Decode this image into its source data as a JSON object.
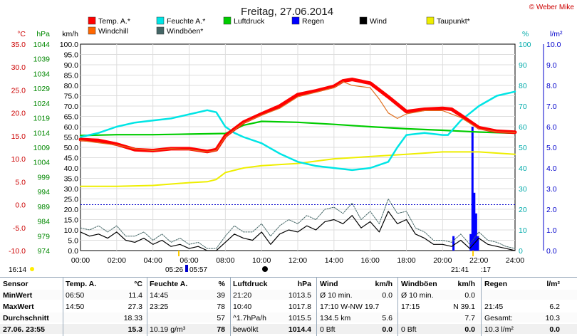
{
  "title": "Freitag, 27.06.2014",
  "copyright": "© Weber Mike",
  "chart_data": {
    "type": "line",
    "x_ticks": [
      "00:00",
      "02:00",
      "04:00",
      "06:00",
      "08:00",
      "10:00",
      "12:00",
      "14:00",
      "16:00",
      "18:00",
      "20:00",
      "22:00",
      "24:00"
    ],
    "axes": {
      "temp_c": {
        "label": "°C",
        "color": "#cc0000",
        "ticks": [
          "35.0",
          "30.0",
          "25.0",
          "20.0",
          "15.0",
          "10.0",
          "5.0",
          "0.0",
          "-5.0",
          "-10.0"
        ],
        "range": [
          -10,
          35
        ]
      },
      "pressure_hpa": {
        "label": "hPa",
        "color": "#008800",
        "ticks": [
          "1044",
          "1039",
          "1034",
          "1029",
          "1024",
          "1019",
          "1014",
          "1009",
          "1004",
          "999",
          "994",
          "989",
          "984",
          "979",
          "974"
        ],
        "range": [
          974,
          1044
        ]
      },
      "wind_kmh": {
        "label": "km/h",
        "color": "#000000",
        "ticks": [
          "100.0",
          "95.0",
          "90.0",
          "85.0",
          "80.0",
          "75.0",
          "70.0",
          "65.0",
          "60.0",
          "55.0",
          "50.0",
          "45.0",
          "40.0",
          "35.0",
          "30.0",
          "25.0",
          "20.0",
          "15.0",
          "10.0",
          "5.0",
          "0.0"
        ],
        "range": [
          0,
          100
        ]
      },
      "humidity_pct": {
        "label": "%",
        "color": "#00aaaa",
        "ticks": [
          "100",
          "90",
          "80",
          "70",
          "60",
          "50",
          "40",
          "30",
          "20",
          "10",
          "0"
        ],
        "range": [
          0,
          100
        ]
      },
      "rain_lm2": {
        "label": "l/m²",
        "color": "#0000cc",
        "ticks": [
          "10.0",
          "9.0",
          "8.0",
          "7.0",
          "6.0",
          "5.0",
          "4.0",
          "3.0",
          "2.0",
          "1.0",
          "0.0"
        ],
        "range": [
          0,
          10
        ]
      }
    },
    "legend": [
      {
        "name": "Temp. A.*",
        "color": "#ff0000"
      },
      {
        "name": "Feuchte A.*",
        "color": "#00e5e5"
      },
      {
        "name": "Luftdruck",
        "color": "#00cc00"
      },
      {
        "name": "Regen",
        "color": "#0000ff"
      },
      {
        "name": "Wind",
        "color": "#000000"
      },
      {
        "name": "Taupunkt*",
        "color": "#eeee00"
      },
      {
        "name": "Windchill",
        "color": "#ff6600"
      },
      {
        "name": "Windböen*",
        "color": "#446666"
      }
    ],
    "series": [
      {
        "name": "Temp. A.*",
        "axis": "temp_c",
        "color": "#ff0000",
        "x": [
          0,
          1,
          2,
          3,
          4,
          5,
          6,
          7,
          7.5,
          8,
          9,
          10,
          11,
          12,
          13,
          14,
          14.5,
          15,
          16,
          17,
          18,
          19,
          20,
          20.5,
          21,
          22,
          23,
          24
        ],
        "y": [
          14.2,
          14.0,
          13.2,
          12.0,
          11.8,
          12.2,
          12.2,
          11.6,
          12.0,
          15.0,
          18.0,
          19.8,
          21.5,
          24.0,
          24.8,
          25.8,
          27.0,
          27.3,
          26.5,
          23.5,
          20.3,
          20.8,
          21.0,
          20.8,
          19.5,
          16.8,
          16.0,
          15.8
        ]
      },
      {
        "name": "Windchill",
        "axis": "temp_c",
        "color": "#e07020",
        "x": [
          0,
          1,
          2,
          3,
          4,
          5,
          6,
          7,
          7.5,
          8,
          9,
          10,
          11,
          12,
          13,
          14,
          14.5,
          15,
          16,
          16.5,
          17,
          17.5,
          18,
          19,
          20,
          21,
          22,
          23,
          24
        ],
        "y": [
          14.0,
          13.5,
          13.0,
          12.2,
          11.8,
          12.2,
          12.0,
          11.5,
          11.8,
          14.8,
          17.8,
          19.5,
          21.0,
          23.5,
          24.5,
          25.5,
          26.8,
          26.0,
          25.5,
          23.0,
          20.0,
          18.8,
          19.8,
          20.5,
          20.5,
          19.0,
          16.5,
          15.9,
          15.7
        ]
      },
      {
        "name": "Feuchte A.*",
        "axis": "humidity_pct",
        "color": "#00e5e5",
        "x": [
          0,
          1,
          2,
          3,
          4,
          5,
          6,
          7,
          7.5,
          8,
          8.5,
          9,
          10,
          11,
          12,
          13,
          14,
          15,
          16,
          17,
          17.5,
          18,
          19,
          20,
          20.3,
          21,
          22,
          23,
          24
        ],
        "y": [
          55,
          57,
          60,
          62,
          63,
          64,
          66,
          68,
          67,
          60,
          57,
          55,
          52,
          47,
          43,
          41,
          40,
          39,
          40,
          43,
          50,
          56,
          57,
          56,
          56,
          63,
          70,
          75,
          77
        ]
      },
      {
        "name": "Luftdruck",
        "axis": "pressure_hpa",
        "color": "#00cc00",
        "x": [
          0,
          2,
          4,
          6,
          8,
          8.5,
          9,
          10,
          12,
          14,
          16,
          18,
          20,
          22,
          24
        ],
        "y": [
          1013.0,
          1013.3,
          1013.3,
          1013.5,
          1013.7,
          1015.0,
          1016.5,
          1017.8,
          1017.5,
          1016.8,
          1016.0,
          1015.3,
          1014.8,
          1014.2,
          1013.8
        ]
      },
      {
        "name": "Taupunkt*",
        "axis": "temp_c",
        "color": "#eeee00",
        "x": [
          0,
          2,
          4,
          6,
          7,
          7.5,
          8,
          9,
          10,
          12,
          14,
          16,
          18,
          20,
          22,
          24
        ],
        "y": [
          4.0,
          4.0,
          4.2,
          4.8,
          5.0,
          5.5,
          7.0,
          8.0,
          8.5,
          9.0,
          10.0,
          10.5,
          11.0,
          11.5,
          11.5,
          11.0
        ]
      },
      {
        "name": "Wind",
        "axis": "wind_kmh",
        "color": "#000000",
        "x": [
          0,
          0.5,
          1,
          1.5,
          2,
          2.5,
          3,
          3.5,
          4,
          4.5,
          5,
          5.5,
          6,
          6.5,
          7,
          7.5,
          8,
          8.5,
          9,
          9.5,
          10,
          10.5,
          11,
          11.5,
          12,
          12.5,
          13,
          13.5,
          14,
          14.5,
          15,
          15.5,
          16,
          16.5,
          17,
          17.5,
          18,
          18.5,
          19,
          19.5,
          20,
          20.5,
          21,
          21.5,
          22,
          22.5,
          23,
          23.5,
          24
        ],
        "y": [
          9,
          7,
          8,
          6,
          9,
          5,
          4,
          6,
          3,
          5,
          2,
          3,
          1,
          2,
          0,
          0,
          4,
          8,
          6,
          5,
          9,
          3,
          8,
          10,
          9,
          12,
          10,
          14,
          15,
          13,
          17,
          11,
          14,
          9,
          19,
          13,
          15,
          8,
          6,
          3,
          3,
          2,
          5,
          1,
          6,
          3,
          2,
          1,
          0
        ]
      },
      {
        "name": "Windböen*",
        "axis": "wind_kmh",
        "color": "#446666",
        "x": [
          0,
          0.5,
          1,
          1.5,
          2,
          2.5,
          3,
          3.5,
          4,
          4.5,
          5,
          5.5,
          6,
          6.5,
          7,
          7.5,
          8,
          8.5,
          9,
          9.5,
          10,
          10.5,
          11,
          11.5,
          12,
          12.5,
          13,
          13.5,
          14,
          14.5,
          15,
          15.5,
          16,
          16.5,
          17,
          17.5,
          18,
          18.5,
          19,
          19.5,
          20,
          20.5,
          21,
          21.5,
          22,
          22.5,
          23,
          23.5,
          24
        ],
        "y": [
          11,
          10,
          12,
          9,
          12,
          7,
          7,
          9,
          5,
          8,
          4,
          6,
          3,
          4,
          1,
          1,
          7,
          12,
          9,
          9,
          13,
          7,
          12,
          15,
          13,
          17,
          15,
          20,
          21,
          18,
          23,
          15,
          19,
          13,
          25,
          18,
          19,
          11,
          9,
          5,
          5,
          4,
          8,
          3,
          9,
          5,
          4,
          2,
          1
        ]
      }
    ],
    "rain_bars": {
      "axis": "rain_lm2",
      "color": "#0000ff",
      "x": [
        20.6,
        21.55,
        21.65,
        21.75,
        21.85,
        21.95
      ],
      "y": [
        0.7,
        0.8,
        6.0,
        2.8,
        1.8,
        0.7
      ]
    },
    "marker_texts": [
      "16:14",
      "05:26",
      "05:57",
      "21:41",
      ":17"
    ],
    "sun_icons": [
      "sunrise",
      "sunset"
    ]
  },
  "table": {
    "row_labels": [
      "Sensor",
      "MinWert",
      "MaxWert",
      "Durchschnitt",
      "27.06. 23:55"
    ],
    "temp": {
      "header": "Temp. A.",
      "unit": "°C",
      "rows": [
        [
          "06:50",
          "11.4"
        ],
        [
          "14:50",
          "27.3"
        ],
        [
          "",
          "18.33"
        ],
        [
          "",
          "15.3"
        ]
      ]
    },
    "humid": {
      "header": "Feuchte A.",
      "unit": "%",
      "rows": [
        [
          "14:45",
          "39"
        ],
        [
          "23:25",
          "78"
        ],
        [
          "",
          "57"
        ],
        [
          "10.19 g/m³",
          "78"
        ]
      ]
    },
    "press": {
      "header": "Luftdruck",
      "unit": "hPa",
      "rows": [
        [
          "21:20",
          "1013.5"
        ],
        [
          "10:40",
          "1017.8"
        ],
        [
          "^1.7hPa/h",
          "1015.5"
        ],
        [
          "bewölkt",
          "1014.4"
        ]
      ]
    },
    "wind": {
      "header": "Wind",
      "unit": "km/h",
      "rows": [
        [
          "Ø 10 min.",
          "0.0"
        ],
        [
          "17:10   W-NW 19.7",
          ""
        ],
        [
          "134.5 km",
          "5.6"
        ],
        [
          "0 Bft",
          "0.0"
        ]
      ]
    },
    "gust": {
      "header": "Windböen",
      "unit": "km/h",
      "rows": [
        [
          "Ø 10 min.",
          "0.0"
        ],
        [
          "17:15",
          "N 39.1"
        ],
        [
          "",
          "7.7"
        ],
        [
          "0 Bft",
          "0.0"
        ]
      ]
    },
    "rain": {
      "header": "Regen",
      "unit": "l/m²",
      "rows": [
        [
          "",
          ""
        ],
        [
          "21:45",
          "6.2"
        ],
        [
          "Gesamt:",
          "10.3"
        ],
        [
          "10.3 l/m²",
          "0.0"
        ]
      ]
    }
  }
}
